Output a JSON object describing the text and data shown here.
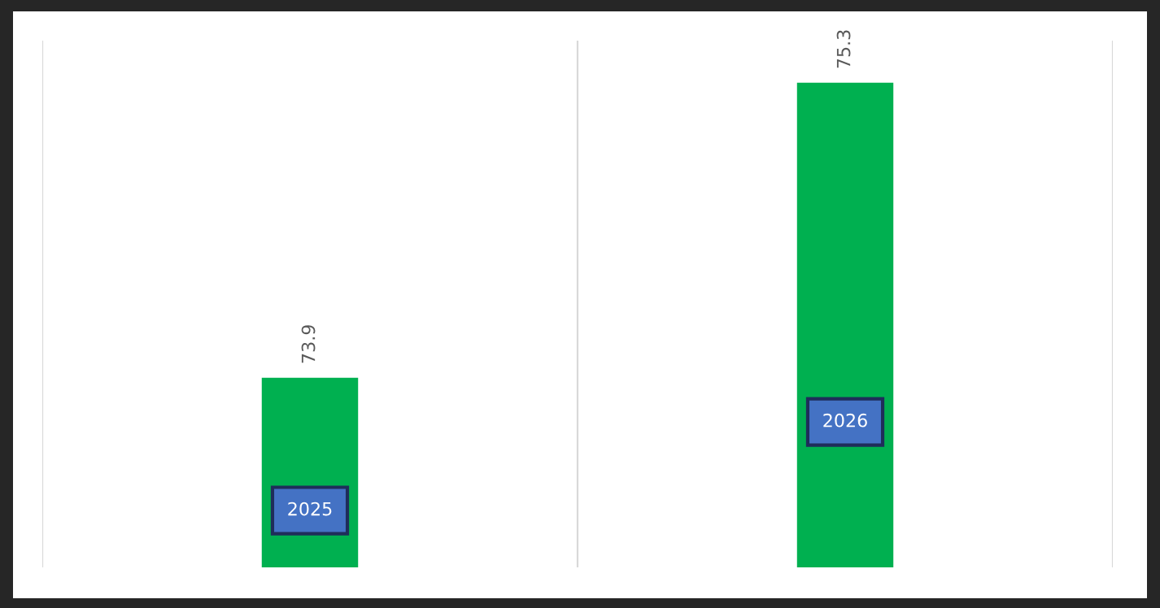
{
  "chart_data": {
    "type": "bar",
    "categories": [
      "2025",
      "2026"
    ],
    "values": [
      73.9,
      75.3
    ],
    "color": "#00b050",
    "ylim": [
      73,
      75.5
    ],
    "data_labels": true,
    "grid": "x",
    "tick_labels": false,
    "legend": false
  }
}
